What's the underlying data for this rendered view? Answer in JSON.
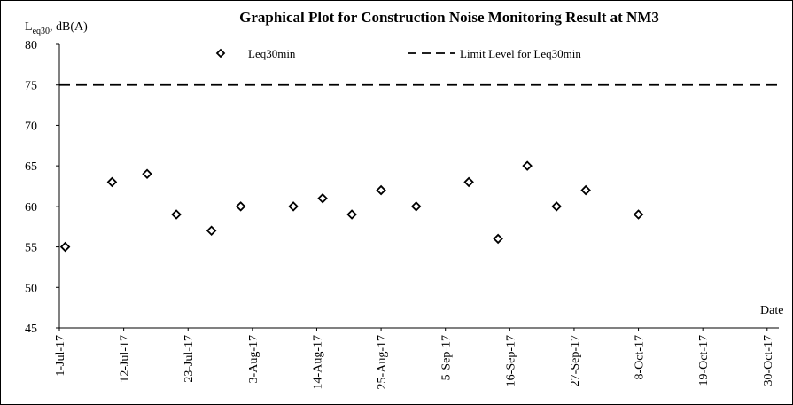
{
  "chart_data": {
    "type": "scatter",
    "title": "Graphical Plot for Construction Noise Monitoring Result at NM3",
    "ylabel_main": "L",
    "ylabel_sub": "eq30",
    "ylabel_rest": ", dB(A)",
    "xlabel": "Date",
    "ylim": [
      45,
      80
    ],
    "y_ticks": [
      "45",
      "50",
      "55",
      "60",
      "65",
      "70",
      "75",
      "80"
    ],
    "xlim": [
      "2017-07-01",
      "2017-11-01"
    ],
    "x_ticks": [
      {
        "date": "2017-07-01",
        "label": "1-Jul-17"
      },
      {
        "date": "2017-07-12",
        "label": "12-Jul-17"
      },
      {
        "date": "2017-07-23",
        "label": "23-Jul-17"
      },
      {
        "date": "2017-08-03",
        "label": "3-Aug-17"
      },
      {
        "date": "2017-08-14",
        "label": "14-Aug-17"
      },
      {
        "date": "2017-08-25",
        "label": "25-Aug-17"
      },
      {
        "date": "2017-09-05",
        "label": "5-Sep-17"
      },
      {
        "date": "2017-09-16",
        "label": "16-Sep-17"
      },
      {
        "date": "2017-09-27",
        "label": "27-Sep-17"
      },
      {
        "date": "2017-10-08",
        "label": "8-Oct-17"
      },
      {
        "date": "2017-10-19",
        "label": "19-Oct-17"
      },
      {
        "date": "2017-10-30",
        "label": "30-Oct-17"
      }
    ],
    "series": [
      {
        "name": "Leq30min",
        "marker": "diamond",
        "points": [
          {
            "x": "2017-07-02",
            "y": 55
          },
          {
            "x": "2017-07-10",
            "y": 63
          },
          {
            "x": "2017-07-16",
            "y": 64
          },
          {
            "x": "2017-07-21",
            "y": 59
          },
          {
            "x": "2017-07-27",
            "y": 57
          },
          {
            "x": "2017-08-01",
            "y": 60
          },
          {
            "x": "2017-08-10",
            "y": 60
          },
          {
            "x": "2017-08-15",
            "y": 61
          },
          {
            "x": "2017-08-20",
            "y": 59
          },
          {
            "x": "2017-08-25",
            "y": 62
          },
          {
            "x": "2017-08-31",
            "y": 60
          },
          {
            "x": "2017-09-09",
            "y": 63
          },
          {
            "x": "2017-09-14",
            "y": 56
          },
          {
            "x": "2017-09-19",
            "y": 65
          },
          {
            "x": "2017-09-24",
            "y": 60
          },
          {
            "x": "2017-09-29",
            "y": 62
          },
          {
            "x": "2017-10-08",
            "y": 59
          }
        ]
      },
      {
        "name": "Limit Level for Leq30min",
        "style": "dashed-line",
        "value": 75
      }
    ],
    "legend_placement": "top",
    "grid": false
  }
}
